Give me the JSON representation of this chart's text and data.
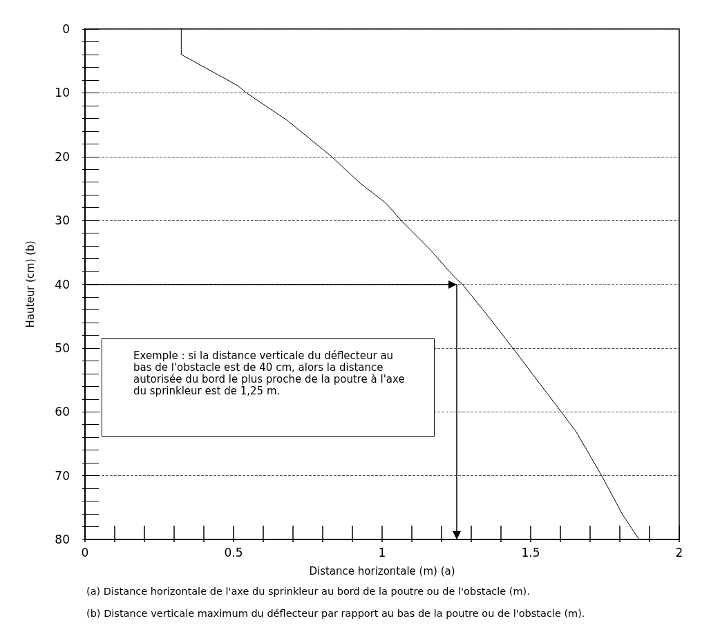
{
  "chart_data": {
    "type": "line",
    "xlabel": "Distance horizontale (m) (a)",
    "ylabel": "Hauteur (cm) (b)",
    "x": [
      0.324,
      0.324,
      0.515,
      0.543,
      0.683,
      0.83,
      0.927,
      1.013,
      1.064,
      1.158,
      1.244,
      1.27,
      1.355,
      1.44,
      1.526,
      1.603,
      1.654,
      1.739,
      1.808,
      1.865
    ],
    "values": [
      0,
      4,
      8.9,
      10,
      14.4,
      20,
      24.2,
      27.3,
      30,
      34.4,
      38.9,
      40,
      44.9,
      50,
      55.3,
      60,
      63.2,
      70,
      76,
      80
    ],
    "color": "#000000",
    "marker": "none",
    "xlim": [
      0,
      2
    ],
    "xticks": [
      0,
      {
        "value": 0.1,
        "label": null
      },
      {
        "value": 0.2,
        "label": null
      },
      {
        "value": 0.3,
        "label": null
      },
      {
        "value": 0.4,
        "label": null
      },
      0.5,
      {
        "value": 0.6,
        "label": null
      },
      {
        "value": 0.7,
        "label": null
      },
      {
        "value": 0.8,
        "label": null
      },
      {
        "value": 0.9,
        "label": null
      },
      1,
      {
        "value": 1.1,
        "label": null
      },
      {
        "value": 1.2,
        "label": null
      },
      {
        "value": 1.3,
        "label": null
      },
      {
        "value": 1.4,
        "label": null
      },
      1.5,
      {
        "value": 1.6,
        "label": null
      },
      {
        "value": 1.7,
        "label": null
      },
      {
        "value": 1.8,
        "label": null
      },
      {
        "value": 1.9,
        "label": null
      },
      2
    ],
    "ylim": [
      80,
      0
    ],
    "yticks": [
      0,
      {
        "value": 2,
        "label": null
      },
      {
        "value": 4,
        "label": null
      },
      {
        "value": 6,
        "label": null
      },
      {
        "value": 8,
        "label": null
      },
      10,
      {
        "value": 12,
        "label": null
      },
      {
        "value": 14,
        "label": null
      },
      {
        "value": 16,
        "label": null
      },
      {
        "value": 18,
        "label": null
      },
      20,
      {
        "value": 22,
        "label": null
      },
      {
        "value": 24,
        "label": null
      },
      {
        "value": 26,
        "label": null
      },
      {
        "value": 28,
        "label": null
      },
      30,
      {
        "value": 32,
        "label": null
      },
      {
        "value": 34,
        "label": null
      },
      {
        "value": 36,
        "label": null
      },
      {
        "value": 38,
        "label": null
      },
      40,
      {
        "value": 42,
        "label": null
      },
      {
        "value": 44,
        "label": null
      },
      {
        "value": 46,
        "label": null
      },
      {
        "value": 48,
        "label": null
      },
      50,
      {
        "value": 52,
        "label": null
      },
      {
        "value": 54,
        "label": null
      },
      {
        "value": 56,
        "label": null
      },
      {
        "value": 58,
        "label": null
      },
      60,
      {
        "value": 62,
        "label": null
      },
      {
        "value": 64,
        "label": null
      },
      {
        "value": 66,
        "label": null
      },
      {
        "value": 68,
        "label": null
      },
      70,
      {
        "value": 72,
        "label": null
      },
      {
        "value": 74,
        "label": null
      },
      {
        "value": 76,
        "label": null
      },
      {
        "value": 78,
        "label": null
      },
      80
    ],
    "grid": "y",
    "ref_lines": [
      {
        "axis": "y",
        "value": 40
      },
      {
        "axis": "x",
        "value": 1.25
      }
    ],
    "annotations": [
      "Exemple : si la distance verticale du déflecteur au bas de l'obstacle est de 40 cm, alors la distance autorisée du bord le plus proche de la poutre à l'axe du sprinkleur est de 1,25 m.",
      "(a)  Distance horizontale de l'axe du sprinkleur au bord de la poutre ou de l'obstacle (m).",
      "(b) Distance verticale maximum du déflecteur par rapport au bas de la poutre ou de l'obstacle (m)."
    ]
  }
}
